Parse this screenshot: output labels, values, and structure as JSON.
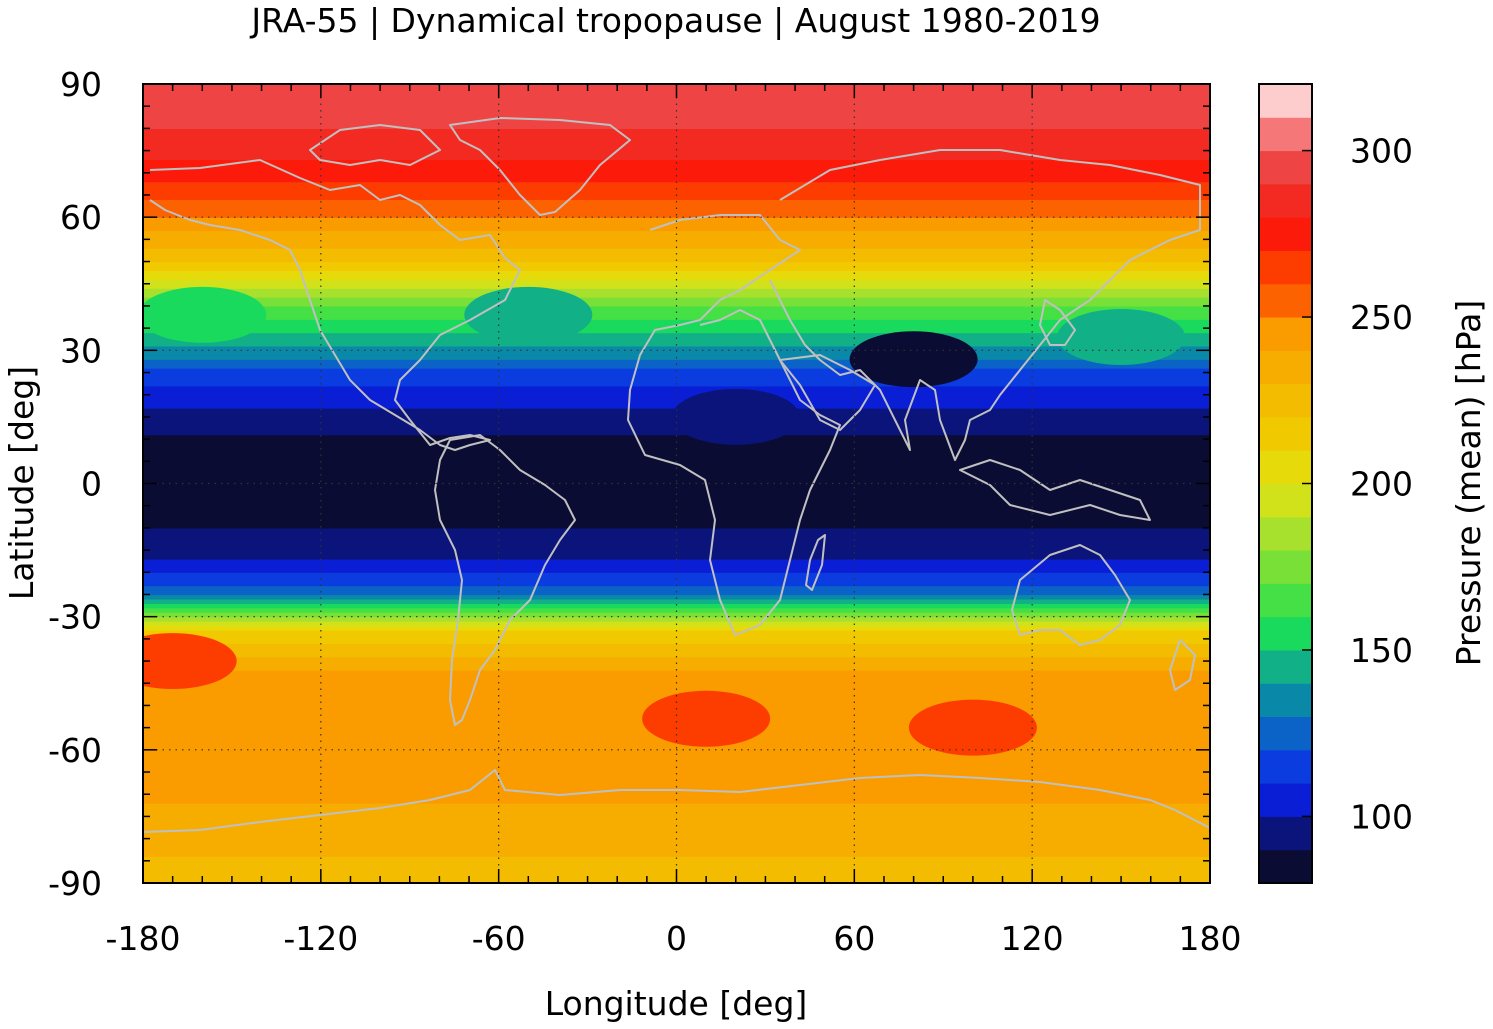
{
  "chart_data": {
    "type": "heatmap",
    "title": "JRA-55 | Dynamical tropopause | August 1980-2019",
    "xlabel": "Longitude [deg]",
    "ylabel": "Latitude [deg]",
    "colorbar_label": "Pressure (mean) [hPa]",
    "xlim": [
      -180,
      180
    ],
    "ylim": [
      -90,
      90
    ],
    "x_ticks": [
      -180,
      -120,
      -60,
      0,
      60,
      120,
      180
    ],
    "y_ticks": [
      -90,
      -60,
      -30,
      0,
      30,
      60,
      90
    ],
    "x_tick_labels": [
      "-180",
      "-120",
      "-60",
      "0",
      "60",
      "120",
      "180"
    ],
    "y_tick_labels": [
      "-90",
      "-60",
      "-30",
      "0",
      "30",
      "60",
      "90"
    ],
    "colorbar_range": [
      80,
      320
    ],
    "colorbar_ticks": [
      100,
      150,
      200,
      250,
      300
    ],
    "colorbar_tick_labels": [
      "100",
      "150",
      "200",
      "250",
      "300"
    ],
    "grid": "dotted",
    "coastlines": true,
    "colorbar_levels": [
      {
        "value": 85,
        "color": "#0b0c33"
      },
      {
        "value": 95,
        "color": "#0a147a"
      },
      {
        "value": 105,
        "color": "#0a1ed6"
      },
      {
        "value": 115,
        "color": "#0a3ce0"
      },
      {
        "value": 125,
        "color": "#0b62c7"
      },
      {
        "value": 135,
        "color": "#0a88a8"
      },
      {
        "value": 145,
        "color": "#12b087"
      },
      {
        "value": 155,
        "color": "#1ada5d"
      },
      {
        "value": 165,
        "color": "#44e045"
      },
      {
        "value": 175,
        "color": "#78e037"
      },
      {
        "value": 185,
        "color": "#a8e12d"
      },
      {
        "value": 195,
        "color": "#d2e21a"
      },
      {
        "value": 205,
        "color": "#e7da0a"
      },
      {
        "value": 215,
        "color": "#f0c900"
      },
      {
        "value": 225,
        "color": "#f4bc00"
      },
      {
        "value": 235,
        "color": "#f7ad00"
      },
      {
        "value": 245,
        "color": "#fa9c00"
      },
      {
        "value": 255,
        "color": "#fc6200"
      },
      {
        "value": 265,
        "color": "#fd3c00"
      },
      {
        "value": 275,
        "color": "#fc1a0a"
      },
      {
        "value": 285,
        "color": "#f22a22"
      },
      {
        "value": 295,
        "color": "#ee4444"
      },
      {
        "value": 305,
        "color": "#f67777"
      },
      {
        "value": 315,
        "color": "#fdcdcd"
      }
    ],
    "zonal_mean_profile": {
      "lat": [
        -90,
        -75,
        -60,
        -45,
        -32,
        -25,
        -18,
        -10,
        0,
        10,
        18,
        25,
        32,
        40,
        50,
        60,
        70,
        80,
        90
      ],
      "pressure": [
        225,
        238,
        250,
        250,
        205,
        128,
        102,
        90,
        85,
        88,
        102,
        118,
        145,
        170,
        220,
        250,
        275,
        290,
        295
      ]
    },
    "features": [
      {
        "lon": 100,
        "lat": -55,
        "pressure": 270
      },
      {
        "lon": 10,
        "lat": -53,
        "pressure": 268
      },
      {
        "lon": -170,
        "lat": -40,
        "pressure": 270
      },
      {
        "lon": -160,
        "lat": 38,
        "pressure": 152
      },
      {
        "lon": -50,
        "lat": 38,
        "pressure": 150
      },
      {
        "lon": 150,
        "lat": 33,
        "pressure": 150
      },
      {
        "lon": 80,
        "lat": 28,
        "pressure": 88
      },
      {
        "lon": 20,
        "lat": 15,
        "pressure": 92
      },
      {
        "lon": 130,
        "lat": 0,
        "pressure": 84
      }
    ],
    "line_colors": {
      "coastline": "#c0c0c0",
      "grid": "#333333"
    }
  }
}
